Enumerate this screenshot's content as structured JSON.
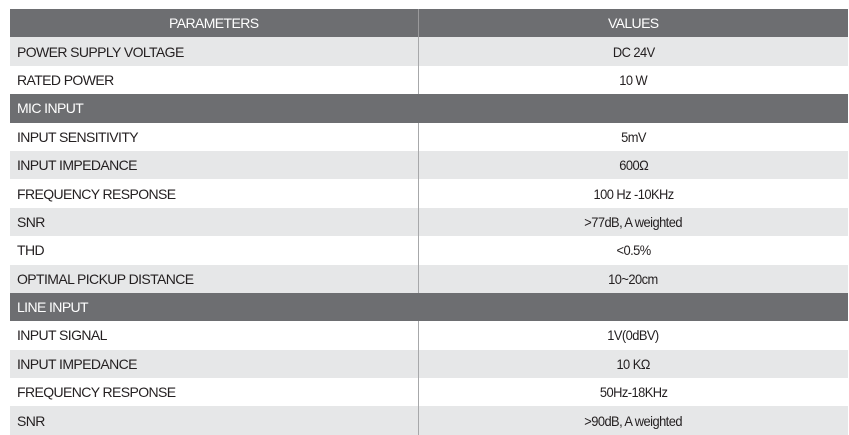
{
  "header": {
    "parameters": "PARAMETERS",
    "values": "VALUES"
  },
  "general": [
    {
      "param": "POWER SUPPLY VOLTAGE",
      "value": "DC 24V"
    },
    {
      "param": "RATED  POWER",
      "value": "10 W"
    }
  ],
  "mic_input": {
    "title": "MIC INPUT",
    "rows": [
      {
        "param": "INPUT SENSITIVITY",
        "value": "5mV"
      },
      {
        "param": "INPUT IMPEDANCE",
        "value": "600Ω"
      },
      {
        "param": "FREQUENCY RESPONSE",
        "value": "100 Hz -10KHz"
      },
      {
        "param": "SNR",
        "value": ">77dB, A weighted"
      },
      {
        "param": "THD",
        "value": "<0.5%"
      },
      {
        "param": "OPTIMAL PICKUP DISTANCE",
        "value": "10~20cm"
      }
    ]
  },
  "line_input": {
    "title": "LINE INPUT",
    "rows": [
      {
        "param": "INPUT SIGNAL",
        "value": "1V(0dBV)"
      },
      {
        "param": "INPUT IMPEDANCE",
        "value": "10 KΩ"
      },
      {
        "param": "FREQUENCY RESPONSE",
        "value": "50Hz-18KHz"
      },
      {
        "param": "SNR",
        "value": ">90dB, A weighted"
      }
    ]
  },
  "colors": {
    "header_bg": "#6d6e71",
    "shaded_row": "#e6e7e8"
  }
}
